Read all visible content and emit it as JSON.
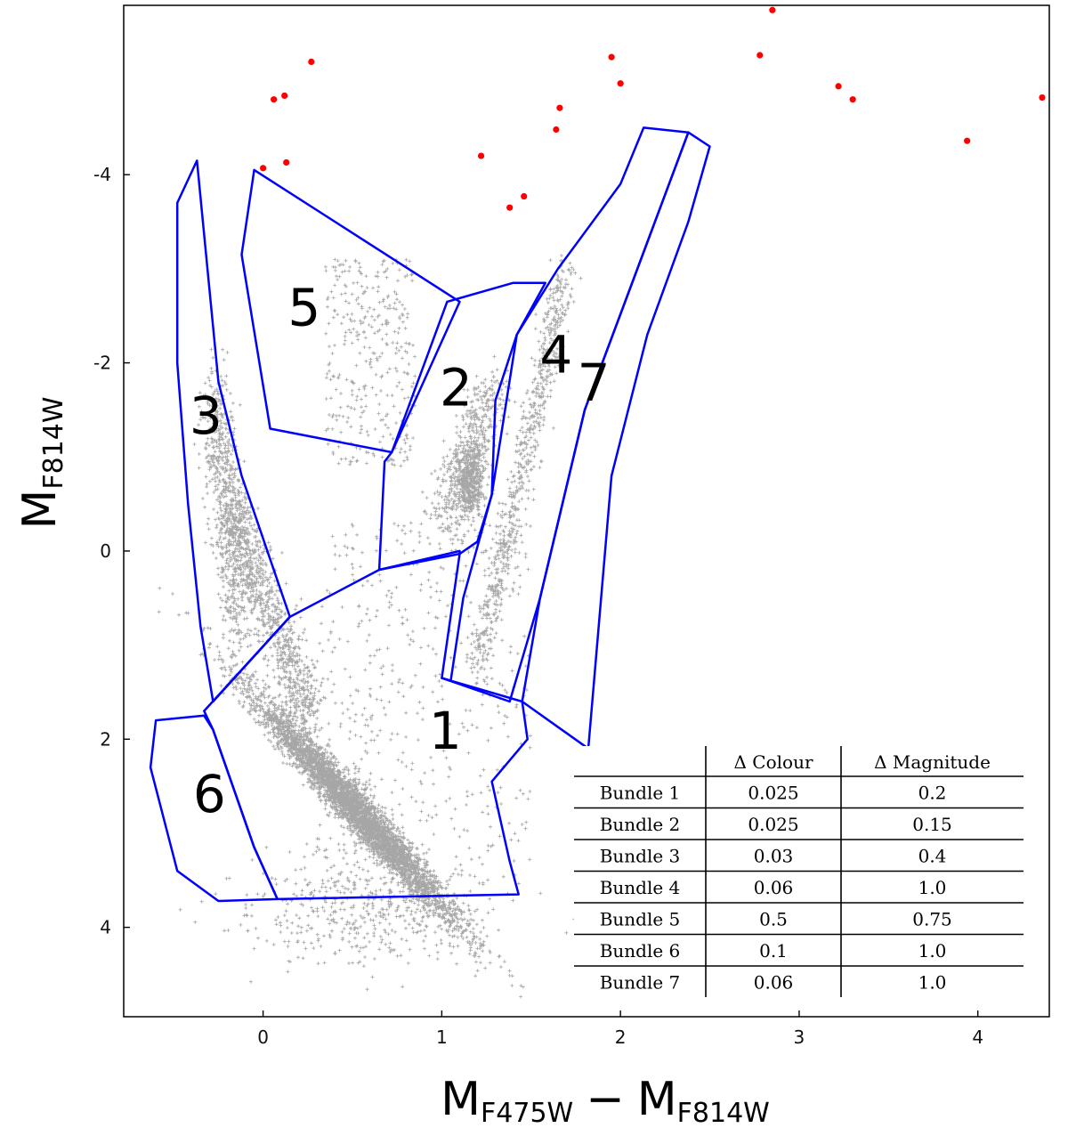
{
  "chart_data": {
    "type": "scatter",
    "title": "",
    "xlabel": {
      "main": "M",
      "sub1": "F475W",
      "minus": "−",
      "main2": "M",
      "sub2": "F814W"
    },
    "ylabel": {
      "main": "M",
      "sub": "F814W"
    },
    "xlim": [
      -0.78,
      4.4
    ],
    "ylim": [
      4.95,
      -5.8
    ],
    "y_inverted": true,
    "grid": false,
    "x_ticks": [
      0,
      1,
      2,
      3,
      4
    ],
    "x_tick_labels": [
      "0",
      "1",
      "2",
      "3",
      "4"
    ],
    "y_ticks": [
      -4,
      -2,
      0,
      2,
      4
    ],
    "y_tick_labels": [
      "-4",
      "-2",
      "0",
      "2",
      "4"
    ],
    "colors": {
      "stars": "#000000",
      "bright_stars": "#ff0000",
      "bundles": "#0000ff"
    },
    "bright_stars": {
      "name": "",
      "points": [
        [
          0.0,
          -4.07
        ],
        [
          0.06,
          -4.8
        ],
        [
          0.12,
          -4.84
        ],
        [
          0.13,
          -4.13
        ],
        [
          0.27,
          -5.2
        ],
        [
          1.22,
          -4.2
        ],
        [
          1.38,
          -3.65
        ],
        [
          1.46,
          -3.77
        ],
        [
          1.64,
          -4.48
        ],
        [
          1.66,
          -4.71
        ],
        [
          1.95,
          -5.25
        ],
        [
          2.0,
          -4.97
        ],
        [
          2.78,
          -5.27
        ],
        [
          2.85,
          -5.75
        ],
        [
          3.22,
          -4.94
        ],
        [
          3.3,
          -4.8
        ],
        [
          3.94,
          -4.36
        ],
        [
          4.36,
          -4.82
        ]
      ]
    },
    "bundles": [
      {
        "label": "1",
        "label_pos": [
          1.02,
          1.95
        ],
        "polygon": [
          [
            -0.33,
            1.7
          ],
          [
            0.15,
            0.7
          ],
          [
            0.65,
            0.2
          ],
          [
            1.1,
            0.0
          ],
          [
            1.1,
            0.03
          ],
          [
            1.0,
            1.35
          ],
          [
            1.45,
            1.6
          ],
          [
            1.48,
            2.0
          ],
          [
            1.28,
            2.45
          ],
          [
            1.38,
            3.3
          ],
          [
            1.43,
            3.65
          ],
          [
            0.08,
            3.7
          ],
          [
            -0.05,
            3.15
          ],
          [
            -0.28,
            1.9
          ]
        ]
      },
      {
        "label": "2",
        "label_pos": [
          1.08,
          -1.7
        ],
        "polygon": [
          [
            0.65,
            0.2
          ],
          [
            0.68,
            -0.95
          ],
          [
            0.72,
            -1.05
          ],
          [
            1.03,
            -2.65
          ],
          [
            1.4,
            -2.85
          ],
          [
            1.58,
            -2.85
          ],
          [
            1.42,
            -2.3
          ],
          [
            1.3,
            -1.6
          ],
          [
            1.28,
            -0.6
          ],
          [
            1.2,
            -0.1
          ],
          [
            1.1,
            0.03
          ]
        ]
      },
      {
        "label": "3",
        "label_pos": [
          -0.32,
          -1.4
        ],
        "polygon": [
          [
            -0.48,
            -3.7
          ],
          [
            -0.37,
            -4.15
          ],
          [
            -0.25,
            -1.8
          ],
          [
            -0.12,
            -0.8
          ],
          [
            0.15,
            0.7
          ],
          [
            -0.28,
            1.6
          ],
          [
            -0.35,
            0.8
          ],
          [
            -0.42,
            -0.5
          ],
          [
            -0.48,
            -2.0
          ]
        ]
      },
      {
        "label": "4",
        "label_pos": [
          1.64,
          -2.05
        ],
        "polygon": [
          [
            1.05,
            1.38
          ],
          [
            1.12,
            0.5
          ],
          [
            1.28,
            -0.6
          ],
          [
            1.42,
            -2.3
          ],
          [
            1.65,
            -3.0
          ],
          [
            2.0,
            -3.9
          ],
          [
            2.13,
            -4.5
          ],
          [
            2.38,
            -4.45
          ],
          [
            1.8,
            -1.5
          ],
          [
            1.55,
            0.5
          ],
          [
            1.38,
            1.6
          ],
          [
            1.0,
            1.35
          ]
        ]
      },
      {
        "label": "5",
        "label_pos": [
          0.23,
          -2.55
        ],
        "polygon": [
          [
            -0.12,
            -3.15
          ],
          [
            -0.05,
            -4.05
          ],
          [
            1.1,
            -2.65
          ],
          [
            0.72,
            -1.05
          ],
          [
            0.04,
            -1.3
          ]
        ]
      },
      {
        "label": "6",
        "label_pos": [
          -0.3,
          2.62
        ],
        "polygon": [
          [
            -0.6,
            1.8
          ],
          [
            -0.33,
            1.75
          ],
          [
            -0.28,
            1.9
          ],
          [
            -0.05,
            3.15
          ],
          [
            0.08,
            3.7
          ],
          [
            -0.25,
            3.72
          ],
          [
            -0.48,
            3.4
          ],
          [
            -0.63,
            2.3
          ]
        ]
      },
      {
        "label": "7",
        "label_pos": [
          1.85,
          -1.75
        ],
        "polygon": [
          [
            1.45,
            1.6
          ],
          [
            1.55,
            0.5
          ],
          [
            1.8,
            -1.5
          ],
          [
            2.38,
            -4.45
          ],
          [
            2.5,
            -4.3
          ],
          [
            2.38,
            -3.5
          ],
          [
            2.15,
            -2.3
          ],
          [
            1.95,
            -0.8
          ],
          [
            1.82,
            2.1
          ]
        ]
      }
    ],
    "table": {
      "headers": [
        "",
        "Δ Colour",
        "Δ Magnitude"
      ],
      "rows": [
        [
          "Bundle 1",
          "0.025",
          "0.2"
        ],
        [
          "Bundle 2",
          "0.025",
          "0.15"
        ],
        [
          "Bundle 3",
          "0.03",
          "0.4"
        ],
        [
          "Bundle 4",
          "0.06",
          "1.0"
        ],
        [
          "Bundle 5",
          "0.5",
          "0.75"
        ],
        [
          "Bundle 6",
          "0.1",
          "1.0"
        ],
        [
          "Bundle 7",
          "0.06",
          "1.0"
        ]
      ]
    }
  }
}
